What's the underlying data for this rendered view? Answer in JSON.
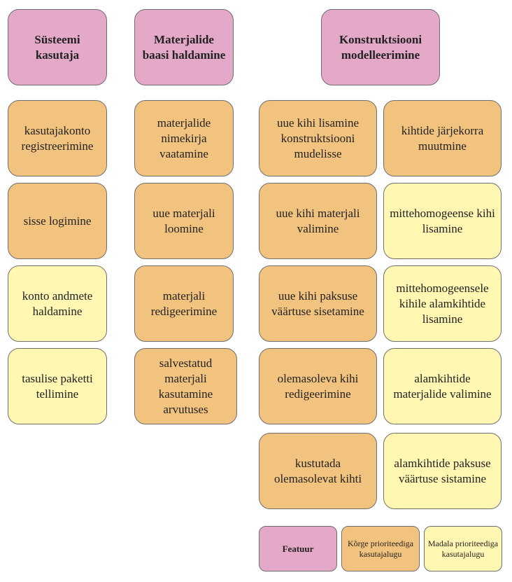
{
  "features": {
    "system_user": "Süsteemi kasutaja",
    "materials_db": "Materjalide baasi haldamine",
    "construction_modeling": "Konstruktsiooni modelleerimine"
  },
  "column_user": [
    "kasutajakonto registreerimine",
    "sisse logimine",
    "konto andmete haldamine",
    "tasulise paketti tellimine"
  ],
  "column_materials": [
    "materjalide nimekirja vaatamine",
    "uue materjali loomine",
    "materjali redigeerimine",
    "salvestatud materjali kasutamine arvutuses"
  ],
  "column_construction_left": [
    "uue kihi lisamine konstruktsiooni mudelisse",
    "uue kihi materjali valimine",
    "uue kihi paksuse väärtuse sisetamine",
    "olemasoleva kihi redigeerimine",
    "kustutada olemasolevat kihti"
  ],
  "column_construction_right": [
    "kihtide järjekorra muutmine",
    "mittehomogeense kihi lisamine",
    "mittehomogeensele kihile alamkihtide lisamine",
    "alamkihtide materjalide valimine",
    "alamkihtide paksuse väärtuse sistamine"
  ],
  "legend": {
    "feature": "Featuur",
    "high": "Kõrge prioriteediga kasutajalugu",
    "low": "Madala prioriteediga kasutajalugu"
  },
  "colors": {
    "feature": "#e4a8c8",
    "high_priority": "#f2c37e",
    "low_priority": "#fff7b2",
    "border": "#6e6e6e"
  }
}
